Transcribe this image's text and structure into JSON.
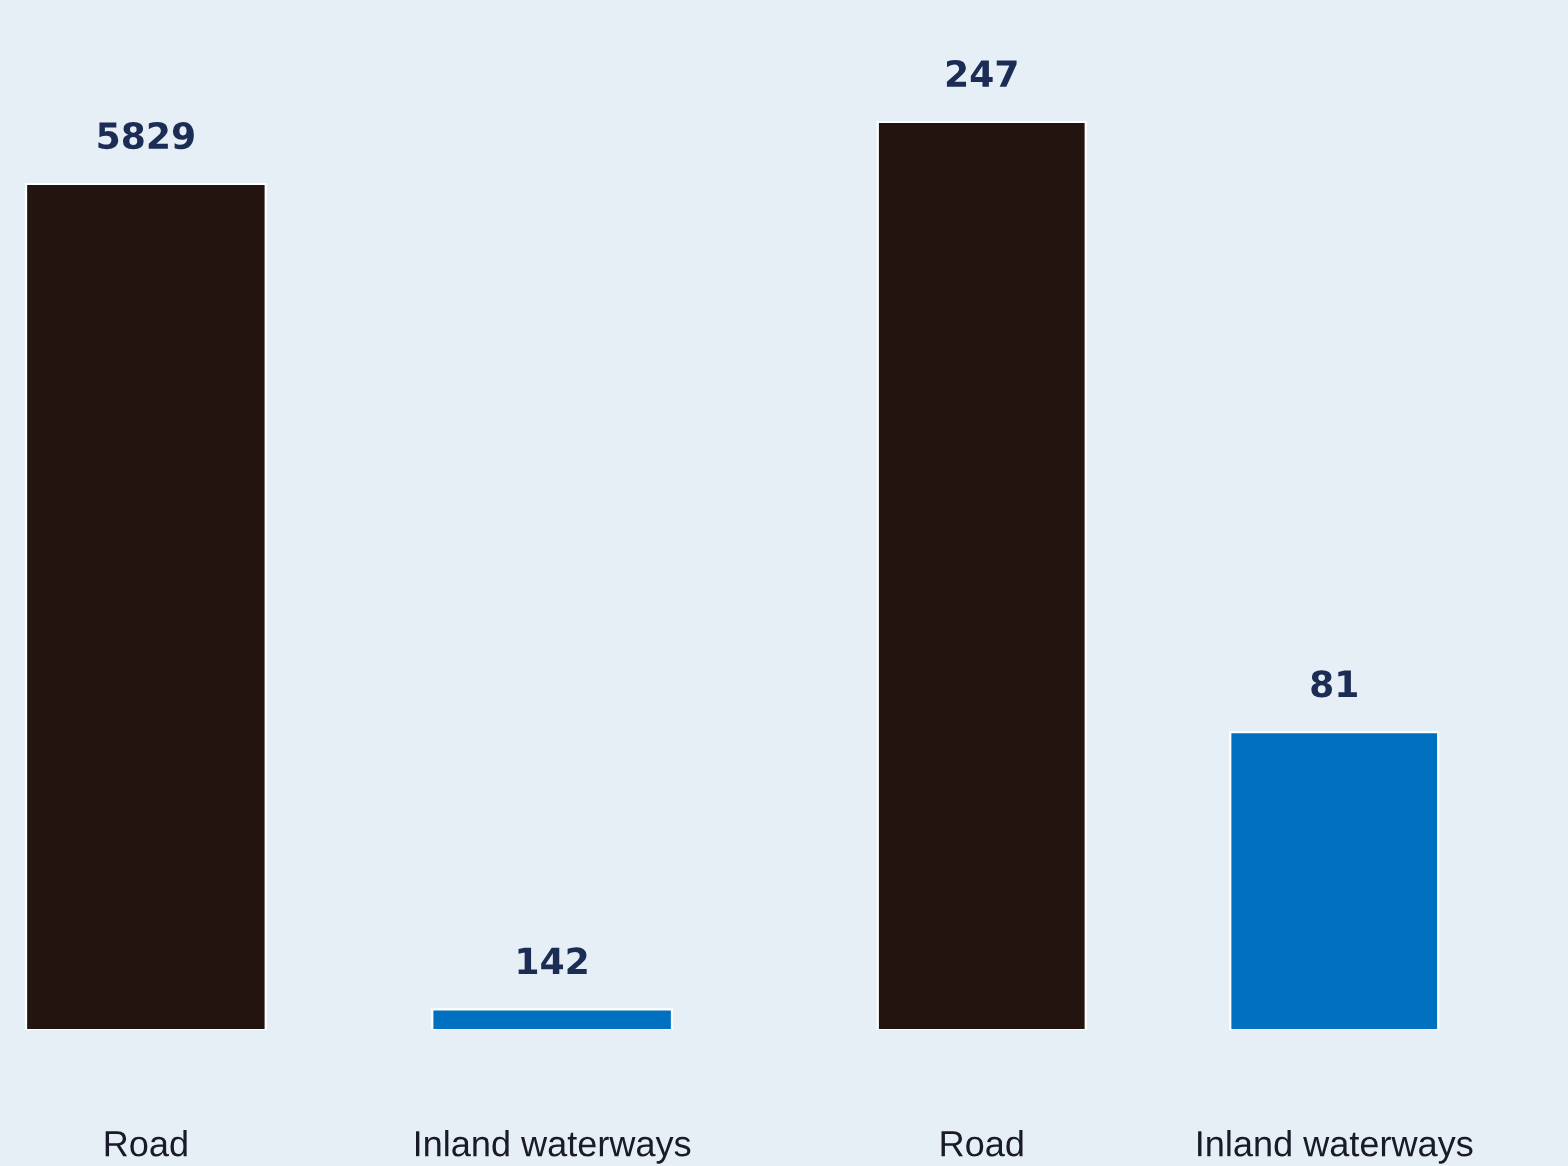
{
  "chart_data": [
    {
      "type": "bar",
      "categories": [
        "Road",
        "Inland waterways"
      ],
      "values": [
        5829,
        142
      ],
      "colors": [
        "#231410",
        "#0070c0"
      ],
      "data_labels": true,
      "tick_labels": "x",
      "grid": false,
      "legend": false
    },
    {
      "type": "bar",
      "categories": [
        "Road",
        "Inland waterways"
      ],
      "values": [
        247,
        81
      ],
      "colors": [
        "#231410",
        "#0070c0"
      ],
      "data_labels": true,
      "tick_labels": "x",
      "grid": false,
      "legend": false
    }
  ]
}
